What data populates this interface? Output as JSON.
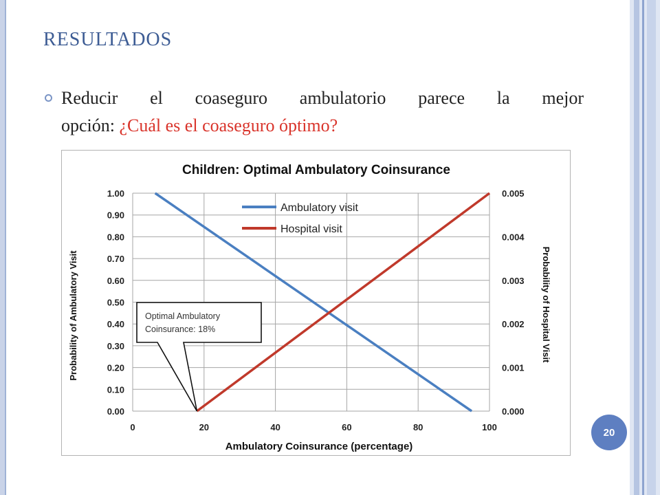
{
  "slide": {
    "title": "RESULTADOS",
    "bullet_text_black": "Reducir el coaseguro ambulatorio parece la mejor",
    "line2_black": "opción: ",
    "line2_red": "¿Cuál es el coaseguro óptimo?",
    "page_number": "20",
    "accent_color": "#3d5c94",
    "highlight_color": "#d9342b"
  },
  "chart_data": {
    "type": "line",
    "title": "Children: Optimal Ambulatory Coinsurance",
    "xlabel": "Ambulatory Coinsurance (percentage)",
    "ylabel": "Probability of Ambulatory Visit",
    "y2label": "Probability of Hospital Visit",
    "xlim": [
      0,
      100
    ],
    "ylim": [
      0,
      1.0
    ],
    "y2lim": [
      0,
      0.005
    ],
    "x_ticks": [
      "0",
      "20",
      "40",
      "60",
      "80",
      "100"
    ],
    "y_ticks": [
      "0.00",
      "0.10",
      "0.20",
      "0.30",
      "0.40",
      "0.50",
      "0.60",
      "0.70",
      "0.80",
      "0.90",
      "1.00"
    ],
    "y2_ticks": [
      "0.000",
      "0.001",
      "0.002",
      "0.003",
      "0.004",
      "0.005"
    ],
    "grid": true,
    "legend_position": "top-center",
    "series": [
      {
        "name": "Ambulatory visit",
        "axis": "left",
        "color": "#4a7fc1",
        "x": [
          6.3,
          95
        ],
        "y": [
          1.0,
          0.0
        ]
      },
      {
        "name": "Hospital visit",
        "axis": "right",
        "color": "#c0392b",
        "x": [
          18,
          100
        ],
        "y": [
          0.0,
          0.005
        ]
      }
    ],
    "annotation": {
      "line1": "Optimal Ambulatory",
      "line2": "Coinsurance: 18%",
      "x": 18,
      "y": 0.0
    }
  }
}
